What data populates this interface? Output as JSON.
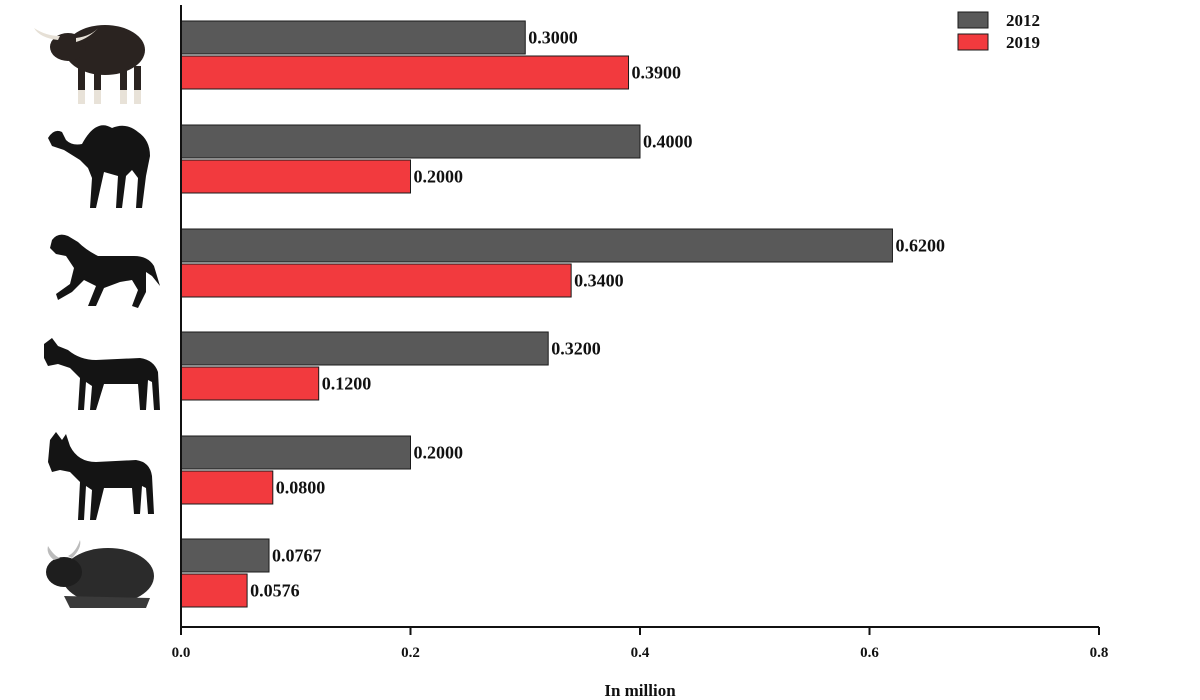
{
  "chart_data": {
    "type": "bar",
    "orientation": "horizontal",
    "title": "",
    "xlabel": "In million",
    "ylabel": "",
    "xlim": [
      0,
      0.8
    ],
    "x_ticks": [
      "0.0",
      "0.2",
      "0.4",
      "0.6",
      "0.8"
    ],
    "categories": [
      "gaur-icon",
      "camel-icon",
      "horse-icon",
      "donkey-icon",
      "mule-icon",
      "yak-icon"
    ],
    "series": [
      {
        "name": "2012",
        "color": "#595959",
        "values": [
          0.3,
          0.4,
          0.62,
          0.32,
          0.2,
          0.0767
        ],
        "labels": [
          "0.3000",
          "0.4000",
          "0.6200",
          "0.3200",
          "0.2000",
          "0.0767"
        ]
      },
      {
        "name": "2019",
        "color": "#f23a3e",
        "values": [
          0.39,
          0.2,
          0.34,
          0.12,
          0.08,
          0.0576
        ],
        "labels": [
          "0.3900",
          "0.2000",
          "0.3400",
          "0.1200",
          "0.0800",
          "0.0576"
        ]
      }
    ],
    "grid": false,
    "legend_position": "top-right"
  }
}
